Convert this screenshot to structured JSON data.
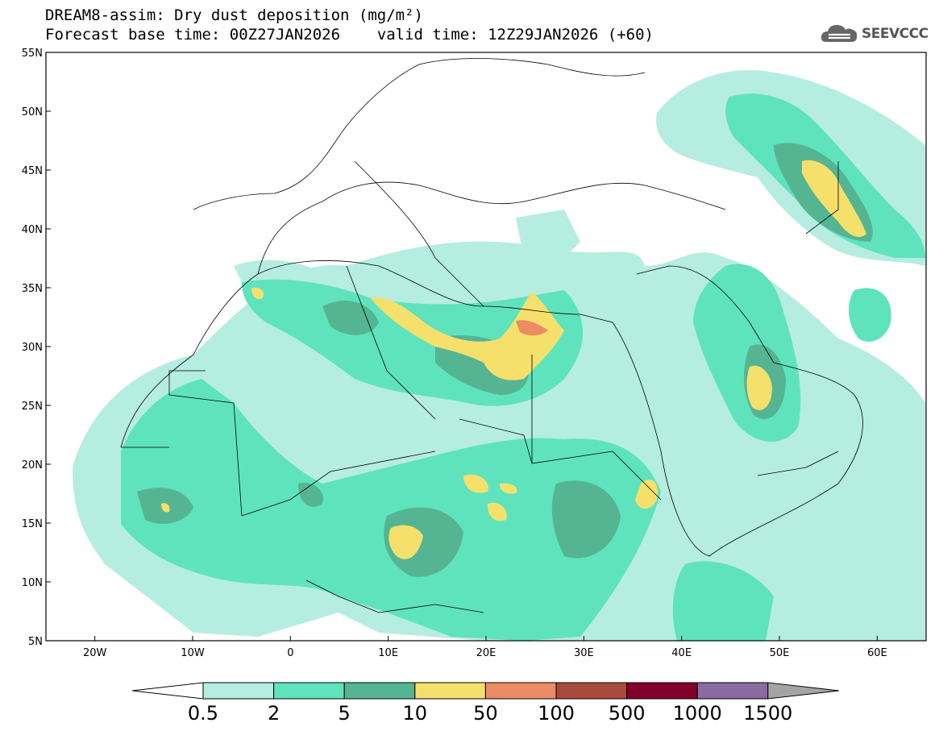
{
  "title_line1": "DREAM8-assim: Dry dust deposition (mg/m²)",
  "title_line2": "Forecast base time: 00Z27JAN2026    valid time: 12Z29JAN2026 (+60)",
  "logo": {
    "icon": "cloud-logo-icon",
    "text": "SEEVCCC"
  },
  "map": {
    "lon_range": [
      -25,
      65
    ],
    "lat_range": [
      5,
      55
    ],
    "lat_ticks": [
      {
        "value": 55,
        "label": "55N"
      },
      {
        "value": 50,
        "label": "50N"
      },
      {
        "value": 45,
        "label": "45N"
      },
      {
        "value": 40,
        "label": "40N"
      },
      {
        "value": 35,
        "label": "35N"
      },
      {
        "value": 30,
        "label": "30N"
      },
      {
        "value": 25,
        "label": "25N"
      },
      {
        "value": 20,
        "label": "20N"
      },
      {
        "value": 15,
        "label": "15N"
      },
      {
        "value": 10,
        "label": "10N"
      },
      {
        "value": 5,
        "label": "5N"
      }
    ],
    "lon_ticks": [
      {
        "value": -20,
        "label": "20W"
      },
      {
        "value": -10,
        "label": "10W"
      },
      {
        "value": 0,
        "label": "0"
      },
      {
        "value": 10,
        "label": "10E"
      },
      {
        "value": 20,
        "label": "20E"
      },
      {
        "value": 30,
        "label": "30E"
      },
      {
        "value": 40,
        "label": "40E"
      },
      {
        "value": 50,
        "label": "50E"
      },
      {
        "value": 60,
        "label": "60E"
      }
    ]
  },
  "colorbar": {
    "labels": [
      "0.5",
      "2",
      "5",
      "10",
      "50",
      "100",
      "500",
      "1000",
      "1500"
    ],
    "colors": [
      "#ffffff",
      "#b6ede1",
      "#5fe3bd",
      "#55b592",
      "#f5e06c",
      "#eb8c64",
      "#aa4a3c",
      "#82002a",
      "#8b6aa2",
      "#a4a4a4"
    ]
  }
}
